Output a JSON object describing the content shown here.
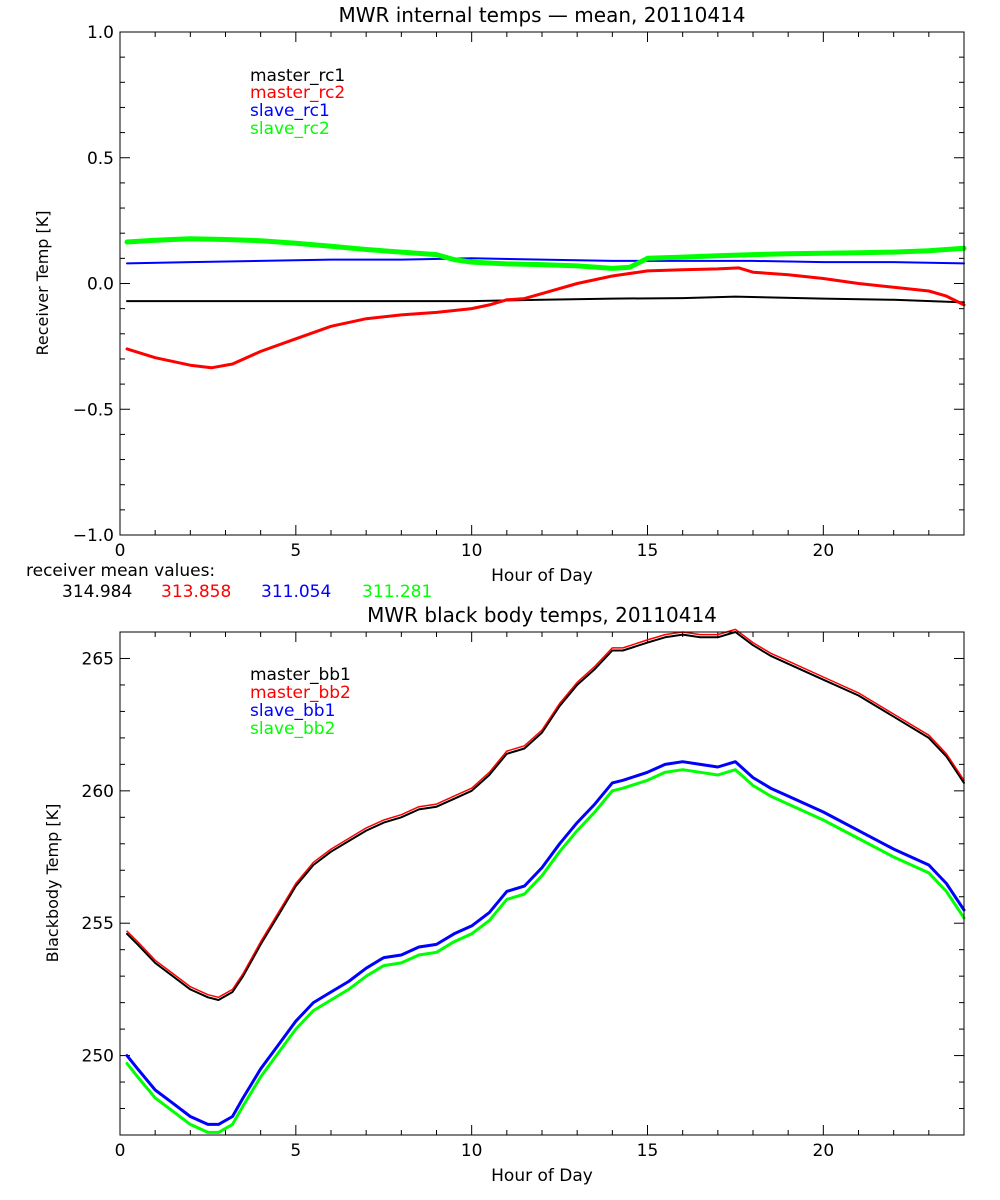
{
  "chart_data": [
    {
      "type": "line",
      "title": "MWR internal temps — mean, 20110414",
      "xlabel": "Hour of Day",
      "ylabel": "Receiver Temp [K]",
      "xlim": [
        0,
        24
      ],
      "ylim": [
        -1.0,
        1.0
      ],
      "xticks": [
        0,
        5,
        10,
        15,
        20
      ],
      "xtick_labels": [
        "0",
        "5",
        "10",
        "15",
        "20"
      ],
      "yticks": [
        -1.0,
        -0.5,
        0.0,
        0.5,
        1.0
      ],
      "ytick_labels": [
        "−1.0",
        "−0.5",
        "0.0",
        "0.5",
        "1.0"
      ],
      "grid": false,
      "legend_position": "top-left",
      "series": [
        {
          "name": "master_rc1",
          "color": "#000000",
          "x": [
            0.2,
            2,
            4,
            6,
            8,
            10,
            12,
            14,
            16,
            17.5,
            20,
            22,
            24
          ],
          "y": [
            -0.07,
            -0.07,
            -0.07,
            -0.07,
            -0.07,
            -0.07,
            -0.065,
            -0.06,
            -0.058,
            -0.052,
            -0.06,
            -0.065,
            -0.075
          ]
        },
        {
          "name": "master_rc2",
          "color": "#ff0000",
          "x": [
            0.2,
            1,
            2,
            2.6,
            3.2,
            4,
            5,
            6,
            7,
            8,
            9,
            10,
            10.5,
            11,
            11.5,
            12,
            13,
            14,
            15,
            16,
            17,
            17.6,
            18,
            19,
            20,
            21,
            22,
            23,
            23.5,
            24
          ],
          "y": [
            -0.26,
            -0.295,
            -0.325,
            -0.335,
            -0.32,
            -0.27,
            -0.22,
            -0.17,
            -0.14,
            -0.125,
            -0.115,
            -0.1,
            -0.085,
            -0.065,
            -0.06,
            -0.04,
            0.0,
            0.03,
            0.05,
            0.055,
            0.058,
            0.062,
            0.045,
            0.035,
            0.02,
            0.0,
            -0.015,
            -0.03,
            -0.05,
            -0.085
          ]
        },
        {
          "name": "slave_rc1",
          "color": "#0000ff",
          "x": [
            0.2,
            2,
            4,
            6,
            8,
            10,
            12,
            14,
            16,
            18,
            20,
            22,
            24
          ],
          "y": [
            0.08,
            0.085,
            0.09,
            0.095,
            0.095,
            0.1,
            0.095,
            0.09,
            0.09,
            0.09,
            0.085,
            0.085,
            0.08
          ]
        },
        {
          "name": "slave_rc2",
          "color": "#00ff00",
          "x": [
            0.2,
            1,
            2,
            3,
            4,
            5,
            6,
            7,
            8,
            9,
            9.5,
            10,
            11,
            12,
            13,
            14,
            14.5,
            15,
            16,
            17,
            18,
            19,
            20,
            21,
            22,
            23,
            24
          ],
          "y": [
            0.165,
            0.172,
            0.178,
            0.175,
            0.17,
            0.16,
            0.148,
            0.135,
            0.125,
            0.115,
            0.095,
            0.085,
            0.078,
            0.075,
            0.07,
            0.06,
            0.065,
            0.1,
            0.105,
            0.11,
            0.115,
            0.118,
            0.12,
            0.122,
            0.125,
            0.13,
            0.14
          ]
        }
      ],
      "annotation": {
        "label": "receiver mean values:",
        "values": [
          {
            "text": "314.984",
            "color": "#000000"
          },
          {
            "text": "313.858",
            "color": "#ff0000"
          },
          {
            "text": "311.054",
            "color": "#0000ff"
          },
          {
            "text": "311.281",
            "color": "#00ff00"
          }
        ]
      }
    },
    {
      "type": "line",
      "title": "MWR black body temps, 20110414",
      "xlabel": "Hour of Day",
      "ylabel": "Blackbody Temp [K]",
      "xlim": [
        0,
        24
      ],
      "ylim": [
        247,
        266
      ],
      "xticks": [
        0,
        5,
        10,
        15,
        20
      ],
      "xtick_labels": [
        "0",
        "5",
        "10",
        "15",
        "20"
      ],
      "yticks": [
        250,
        255,
        260,
        265
      ],
      "ytick_labels": [
        "250",
        "255",
        "260",
        "265"
      ],
      "grid": false,
      "legend_position": "top-left",
      "series": [
        {
          "name": "master_bb1",
          "color": "#000000",
          "x": [
            0.2,
            0.5,
            1,
            1.5,
            2,
            2.5,
            2.8,
            3.2,
            3.5,
            4,
            4.5,
            5,
            5.5,
            6,
            6.5,
            7,
            7.5,
            8,
            8.5,
            9,
            9.5,
            10,
            10.5,
            11,
            11.5,
            12,
            12.5,
            13,
            13.5,
            14,
            14.3,
            15,
            15.5,
            16,
            16.5,
            17,
            17.5,
            18,
            18.5,
            19,
            20,
            21,
            22,
            23,
            23.5,
            24
          ],
          "y": [
            254.6,
            254.2,
            253.5,
            253.0,
            252.5,
            252.2,
            252.1,
            252.4,
            253.0,
            254.2,
            255.3,
            256.4,
            257.2,
            257.7,
            258.1,
            258.5,
            258.8,
            259.0,
            259.3,
            259.4,
            259.7,
            260.0,
            260.6,
            261.4,
            261.6,
            262.2,
            263.2,
            264.0,
            264.6,
            265.3,
            265.3,
            265.6,
            265.8,
            265.9,
            265.8,
            265.8,
            266.0,
            265.5,
            265.1,
            264.8,
            264.2,
            263.6,
            262.8,
            262.0,
            261.3,
            260.3
          ]
        },
        {
          "name": "master_bb2",
          "color": "#ff0000",
          "x": [
            0.2,
            0.5,
            1,
            1.5,
            2,
            2.5,
            2.8,
            3.2,
            3.5,
            4,
            4.5,
            5,
            5.5,
            6,
            6.5,
            7,
            7.5,
            8,
            8.5,
            9,
            9.5,
            10,
            10.5,
            11,
            11.5,
            12,
            12.5,
            13,
            13.5,
            14,
            14.3,
            15,
            15.5,
            16,
            16.5,
            17,
            17.5,
            18,
            18.5,
            19,
            20,
            21,
            22,
            23,
            23.5,
            24
          ],
          "y": [
            254.7,
            254.3,
            253.6,
            253.1,
            252.6,
            252.3,
            252.2,
            252.5,
            253.1,
            254.3,
            255.4,
            256.5,
            257.3,
            257.8,
            258.2,
            258.6,
            258.9,
            259.1,
            259.4,
            259.5,
            259.8,
            260.1,
            260.7,
            261.5,
            261.7,
            262.3,
            263.3,
            264.1,
            264.7,
            265.4,
            265.4,
            265.7,
            265.9,
            266.0,
            265.9,
            265.9,
            266.1,
            265.6,
            265.2,
            264.9,
            264.3,
            263.7,
            262.9,
            262.1,
            261.4,
            260.4
          ]
        },
        {
          "name": "slave_bb1",
          "color": "#0000ff",
          "x": [
            0.2,
            0.5,
            1,
            1.5,
            2,
            2.5,
            2.8,
            3.2,
            3.5,
            4,
            4.5,
            5,
            5.5,
            6,
            6.5,
            7,
            7.5,
            8,
            8.5,
            9,
            9.5,
            10,
            10.5,
            11,
            11.5,
            12,
            12.5,
            13,
            13.5,
            14,
            14.3,
            15,
            15.5,
            16,
            16.5,
            17,
            17.5,
            18,
            18.5,
            19,
            20,
            21,
            22,
            23,
            23.5,
            24
          ],
          "y": [
            250.0,
            249.5,
            248.7,
            248.2,
            247.7,
            247.4,
            247.4,
            247.7,
            248.4,
            249.5,
            250.4,
            251.3,
            252.0,
            252.4,
            252.8,
            253.3,
            253.7,
            253.8,
            254.1,
            254.2,
            254.6,
            254.9,
            255.4,
            256.2,
            256.4,
            257.1,
            258.0,
            258.8,
            259.5,
            260.3,
            260.4,
            260.7,
            261.0,
            261.1,
            261.0,
            260.9,
            261.1,
            260.5,
            260.1,
            259.8,
            259.2,
            258.5,
            257.8,
            257.2,
            256.5,
            255.5
          ]
        },
        {
          "name": "slave_bb2",
          "color": "#00ff00",
          "x": [
            0.2,
            0.5,
            1,
            1.5,
            2,
            2.5,
            2.8,
            3.2,
            3.5,
            4,
            4.5,
            5,
            5.5,
            6,
            6.5,
            7,
            7.5,
            8,
            8.5,
            9,
            9.5,
            10,
            10.5,
            11,
            11.5,
            12,
            12.5,
            13,
            13.5,
            14,
            14.3,
            15,
            15.5,
            16,
            16.5,
            17,
            17.5,
            18,
            18.5,
            19,
            20,
            21,
            22,
            23,
            23.5,
            24
          ],
          "y": [
            249.7,
            249.2,
            248.4,
            247.9,
            247.4,
            247.1,
            247.1,
            247.4,
            248.1,
            249.2,
            250.1,
            251.0,
            251.7,
            252.1,
            252.5,
            253.0,
            253.4,
            253.5,
            253.8,
            253.9,
            254.3,
            254.6,
            255.1,
            255.9,
            256.1,
            256.8,
            257.7,
            258.5,
            259.2,
            260.0,
            260.1,
            260.4,
            260.7,
            260.8,
            260.7,
            260.6,
            260.8,
            260.2,
            259.8,
            259.5,
            258.9,
            258.2,
            257.5,
            256.9,
            256.2,
            255.2
          ]
        }
      ]
    }
  ]
}
